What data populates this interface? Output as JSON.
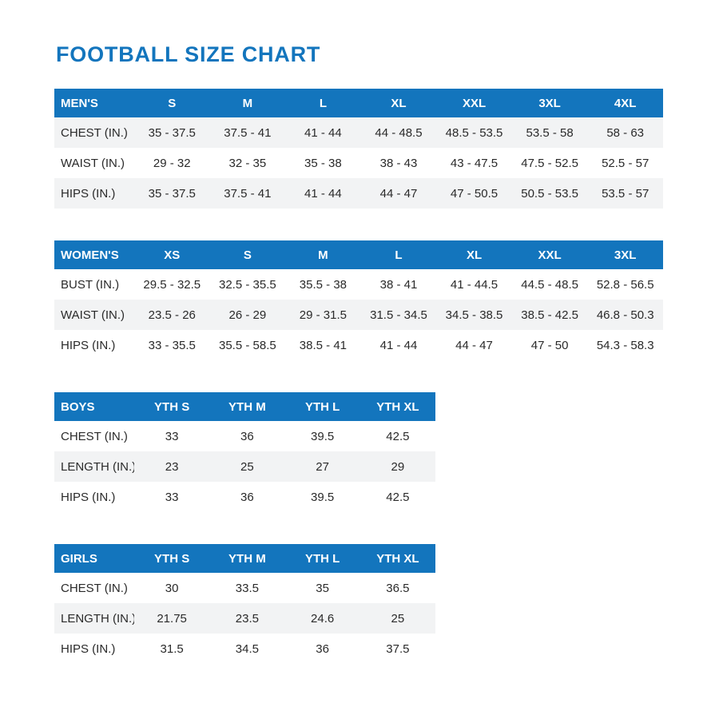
{
  "page": {
    "title": "FOOTBALL SIZE CHART"
  },
  "colors": {
    "accent_blue": "#1375bd",
    "row_alt_gray": "#f2f3f4",
    "header_text": "#ffffff",
    "body_text": "#2a2a2a"
  },
  "tables": [
    {
      "name": "mens",
      "header": [
        "MEN'S",
        "S",
        "M",
        "L",
        "XL",
        "XXL",
        "3XL",
        "4XL"
      ],
      "rows": [
        [
          "CHEST (IN.)",
          "35 - 37.5",
          "37.5 - 41",
          "41 - 44",
          "44 - 48.5",
          "48.5 - 53.5",
          "53.5 - 58",
          "58 - 63"
        ],
        [
          "WAIST (IN.)",
          "29 - 32",
          "32 - 35",
          "35 - 38",
          "38 - 43",
          "43 - 47.5",
          "47.5 - 52.5",
          "52.5 - 57"
        ],
        [
          "HIPS (IN.)",
          "35 - 37.5",
          "37.5 - 41",
          "41 - 44",
          "44 - 47",
          "47 - 50.5",
          "50.5 - 53.5",
          "53.5 - 57"
        ]
      ]
    },
    {
      "name": "womens",
      "header": [
        "WOMEN'S",
        "XS",
        "S",
        "M",
        "L",
        "XL",
        "XXL",
        "3XL"
      ],
      "rows": [
        [
          "BUST (IN.)",
          "29.5 - 32.5",
          "32.5 - 35.5",
          "35.5 - 38",
          "38 - 41",
          "41 - 44.5",
          "44.5 - 48.5",
          "52.8 - 56.5"
        ],
        [
          "WAIST (IN.)",
          "23.5 - 26",
          "26 - 29",
          "29 - 31.5",
          "31.5 - 34.5",
          "34.5 - 38.5",
          "38.5 - 42.5",
          "46.8 - 50.3"
        ],
        [
          "HIPS (IN.)",
          "33 - 35.5",
          "35.5 - 58.5",
          "38.5 - 41",
          "41 - 44",
          "44 - 47",
          "47 - 50",
          "54.3 - 58.3"
        ]
      ]
    },
    {
      "name": "boys",
      "header": [
        "BOYS",
        "YTH S",
        "YTH M",
        "YTH L",
        "YTH XL"
      ],
      "rows": [
        [
          "CHEST (IN.)",
          "33",
          "36",
          "39.5",
          "42.5"
        ],
        [
          "LENGTH (IN.)",
          "23",
          "25",
          "27",
          "29"
        ],
        [
          "HIPS (IN.)",
          "33",
          "36",
          "39.5",
          "42.5"
        ]
      ]
    },
    {
      "name": "girls",
      "header": [
        "GIRLS",
        "YTH S",
        "YTH M",
        "YTH L",
        "YTH XL"
      ],
      "rows": [
        [
          "CHEST (IN.)",
          "30",
          "33.5",
          "35",
          "36.5"
        ],
        [
          "LENGTH (IN.)",
          "21.75",
          "23.5",
          "24.6",
          "25"
        ],
        [
          "HIPS (IN.)",
          "31.5",
          "34.5",
          "36",
          "37.5"
        ]
      ]
    }
  ]
}
